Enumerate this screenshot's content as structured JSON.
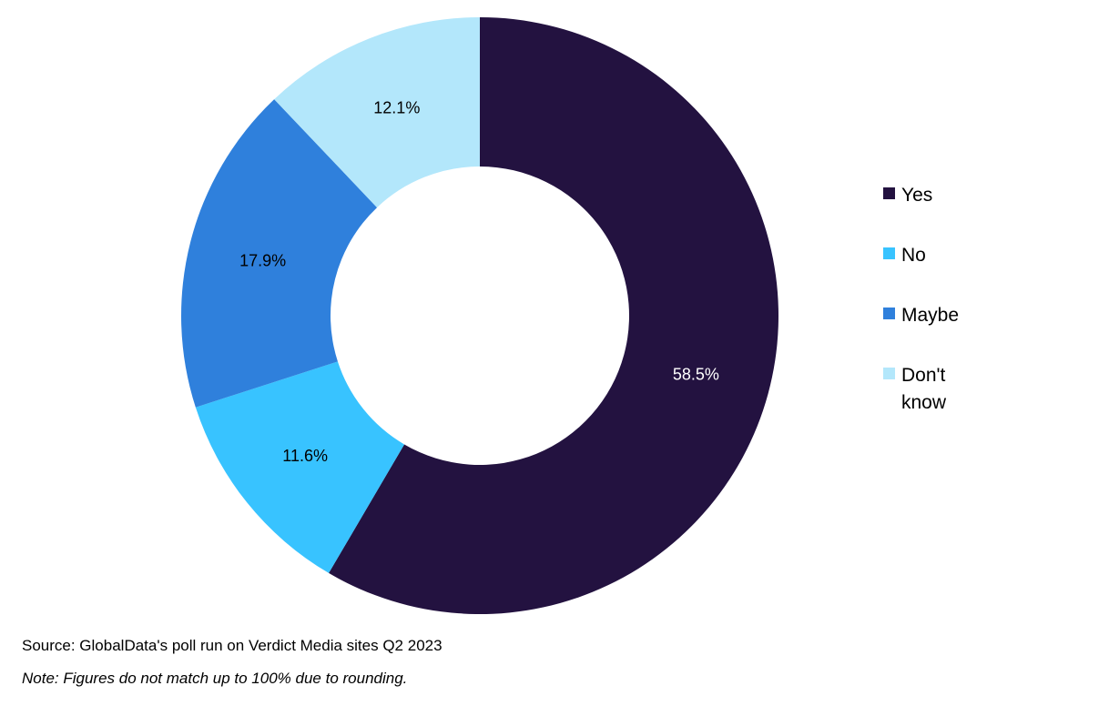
{
  "chart_data": {
    "type": "pie",
    "donut": true,
    "categories": [
      "Yes",
      "No",
      "Maybe",
      "Don't know"
    ],
    "values": [
      58.5,
      11.6,
      17.9,
      12.1
    ],
    "data_labels": [
      "58.5%",
      "11.6%",
      "17.9%",
      "12.1%"
    ],
    "colors": [
      "#231240",
      "#38C3FF",
      "#2F80DC",
      "#B3E7FB"
    ],
    "label_colors": [
      "#ffffff",
      "#000000",
      "#000000",
      "#000000"
    ],
    "legend_position": "right"
  },
  "legend": {
    "items": [
      {
        "label": "Yes",
        "color": "#231240"
      },
      {
        "label": "No",
        "color": "#38C3FF"
      },
      {
        "label": "Maybe",
        "color": "#2F80DC"
      },
      {
        "label": "Don't know",
        "color": "#B3E7FB"
      }
    ]
  },
  "footer": {
    "source": "Source: GlobalData's poll run on Verdict Media sites Q2 2023",
    "note": "Note: Figures do not match up to 100% due to rounding."
  }
}
